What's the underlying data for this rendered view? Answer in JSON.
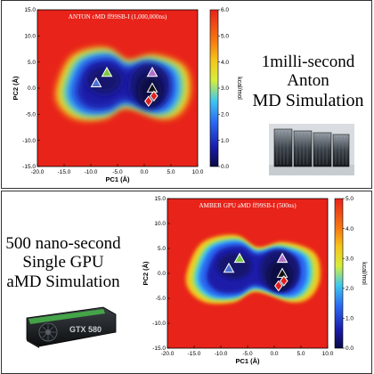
{
  "top_caption": [
    "1milli-second",
    "Anton",
    "MD Simulation"
  ],
  "bottom_caption": [
    "500 nano-second",
    "Single GPU",
    "aMD Simulation"
  ],
  "gpu_card": {
    "label": "GTX 580"
  },
  "chart_data": [
    {
      "type": "heatmap",
      "title": "ANTON cMD ff99SB-I (1,000,000ns)",
      "xlabel": "PC1 (Å)",
      "ylabel": "PC2 (Å)",
      "colorbar_label": "kcal/mol",
      "xlim": [
        -20.0,
        10.0
      ],
      "ylim": [
        -15.0,
        15.0
      ],
      "x_ticks": [
        "-20.0",
        "-15.0",
        "-10.0",
        "-5.0",
        "0.0",
        "5.0",
        "10.0"
      ],
      "y_ticks": [
        "15.0",
        "10.0",
        "5.0",
        "0.0",
        "-5.0",
        "-10.0",
        "-15.0"
      ],
      "colorbar_range": [
        0.0,
        6.0
      ],
      "colorbar_ticks": [
        "6.0",
        "5.0",
        "4.0",
        "3.0",
        "2.0",
        "1.0",
        "0.0"
      ],
      "markers": [
        {
          "shape": "triangle",
          "color": "#7ac943",
          "x": -7.0,
          "y": 3.0
        },
        {
          "shape": "triangle",
          "color": "#4a6fd0",
          "x": -9.0,
          "y": 1.0
        },
        {
          "shape": "triangle",
          "color": "#b070c8",
          "x": 1.5,
          "y": 3.0
        },
        {
          "shape": "triangle",
          "color": "#111111",
          "x": 1.5,
          "y": 0.0
        },
        {
          "shape": "diamond",
          "color": "#e02020",
          "x": 1.8,
          "y": -1.5
        },
        {
          "shape": "diamond",
          "color": "#e02020",
          "x": 0.8,
          "y": -2.5
        }
      ]
    },
    {
      "type": "heatmap",
      "title": "AMBER GPU aMD ff99SB-I (500ns)",
      "xlabel": "PC1 (Å)",
      "ylabel": "PC2 (Å)",
      "colorbar_label": "kcal/mol",
      "xlim": [
        -20.0,
        10.0
      ],
      "ylim": [
        -15.0,
        15.0
      ],
      "x_ticks": [
        "-20.0",
        "-15.0",
        "-10.0",
        "-5.0",
        "0.0",
        "5.0",
        "10.0"
      ],
      "y_ticks": [
        "15.0",
        "10.0",
        "5.0",
        "0.0",
        "-5.0",
        "-10.0",
        "-15.0"
      ],
      "colorbar_range": [
        0.0,
        5.0
      ],
      "colorbar_ticks": [
        "5.0",
        "4.0",
        "3.0",
        "2.0",
        "1.0",
        "0.0"
      ],
      "markers": [
        {
          "shape": "triangle",
          "color": "#7ac943",
          "x": -6.5,
          "y": 3.0
        },
        {
          "shape": "triangle",
          "color": "#4a6fd0",
          "x": -8.5,
          "y": 1.0
        },
        {
          "shape": "triangle",
          "color": "#b070c8",
          "x": 1.5,
          "y": 3.0
        },
        {
          "shape": "triangle",
          "color": "#111111",
          "x": 1.5,
          "y": 0.0
        },
        {
          "shape": "diamond",
          "color": "#e02020",
          "x": 1.8,
          "y": -1.5
        },
        {
          "shape": "diamond",
          "color": "#e02020",
          "x": 0.8,
          "y": -2.5
        }
      ]
    }
  ]
}
